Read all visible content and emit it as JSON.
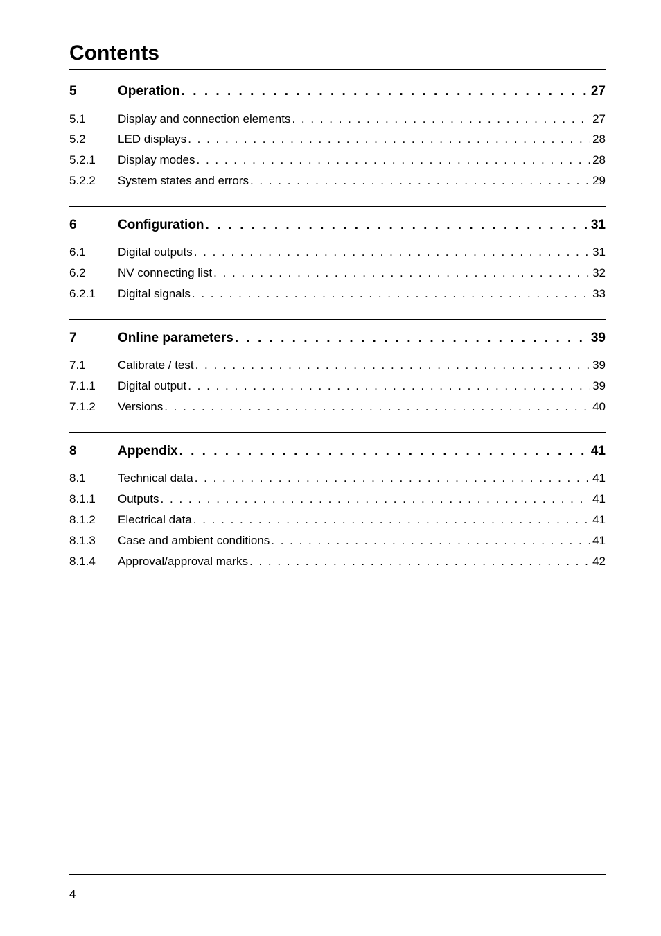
{
  "colors": {
    "background": "#ffffff",
    "text": "#000000",
    "rule": "#000000"
  },
  "typography": {
    "title_fontsize": 30,
    "section_fontsize": 19,
    "entry_fontsize": 17,
    "font_family": "Arial"
  },
  "title": "Contents",
  "page_number": "4",
  "leader_char": " .",
  "sections": [
    {
      "num": "5",
      "label": "Operation",
      "page": "27",
      "entries": [
        {
          "num": "5.1",
          "label": "Display and connection elements",
          "page": "27"
        },
        {
          "num": "5.2",
          "label": "LED displays",
          "page": "28"
        },
        {
          "num": "5.2.1",
          "label": "Display modes",
          "page": "28"
        },
        {
          "num": "5.2.2",
          "label": "System states and errors",
          "page": "29"
        }
      ]
    },
    {
      "num": "6",
      "label": "Configuration",
      "page": "31",
      "entries": [
        {
          "num": "6.1",
          "label": "Digital outputs",
          "page": "31"
        },
        {
          "num": "6.2",
          "label": "NV connecting list",
          "page": "32"
        },
        {
          "num": "6.2.1",
          "label": "Digital signals",
          "page": "33"
        }
      ]
    },
    {
      "num": "7",
      "label": "Online parameters",
      "page": "39",
      "entries": [
        {
          "num": "7.1",
          "label": "Calibrate / test",
          "page": "39"
        },
        {
          "num": "7.1.1",
          "label": "Digital output",
          "page": "39"
        },
        {
          "num": "7.1.2",
          "label": "Versions",
          "page": "40"
        }
      ]
    },
    {
      "num": "8",
      "label": "Appendix",
      "page": "41",
      "entries": [
        {
          "num": "8.1",
          "label": "Technical data",
          "page": "41"
        },
        {
          "num": "8.1.1",
          "label": "Outputs",
          "page": "41"
        },
        {
          "num": "8.1.2",
          "label": "Electrical data",
          "page": "41"
        },
        {
          "num": "8.1.3",
          "label": "Case and ambient conditions",
          "page": "41"
        },
        {
          "num": "8.1.4",
          "label": "Approval/approval marks",
          "page": "42"
        }
      ]
    }
  ]
}
